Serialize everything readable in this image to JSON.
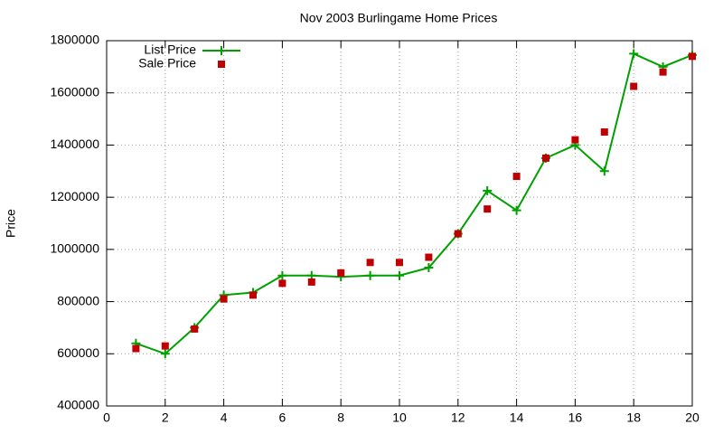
{
  "chart_data": {
    "type": "line",
    "title": "Nov 2003 Burlingame Home Prices",
    "y_label": "Price",
    "x": [
      1,
      2,
      3,
      4,
      5,
      6,
      7,
      8,
      9,
      10,
      11,
      12,
      13,
      14,
      15,
      16,
      17,
      18,
      19,
      20
    ],
    "series": [
      {
        "name": "List Price",
        "color": "#00a000",
        "style": "linespoints",
        "marker": "plus",
        "values": [
          640000,
          600000,
          700000,
          825000,
          835000,
          900000,
          900000,
          895000,
          900000,
          900000,
          930000,
          1060000,
          1225000,
          1150000,
          1350000,
          1400000,
          1300000,
          1750000,
          1700000,
          1745000
        ]
      },
      {
        "name": "Sale Price",
        "color": "#c00000",
        "style": "points",
        "marker": "square",
        "values": [
          620000,
          630000,
          695000,
          810000,
          825000,
          870000,
          875000,
          910000,
          950000,
          950000,
          970000,
          1060000,
          1155000,
          1280000,
          1350000,
          1420000,
          1450000,
          1625000,
          1680000,
          1740000
        ]
      }
    ],
    "xlim": [
      0,
      20
    ],
    "xticks": [
      0,
      2,
      4,
      6,
      8,
      10,
      12,
      14,
      16,
      18,
      20
    ],
    "ylim": [
      400000,
      1800000
    ],
    "yticks": [
      400000,
      600000,
      800000,
      1000000,
      1200000,
      1400000,
      1600000,
      1800000
    ],
    "grid": true,
    "legend": "top-left"
  }
}
